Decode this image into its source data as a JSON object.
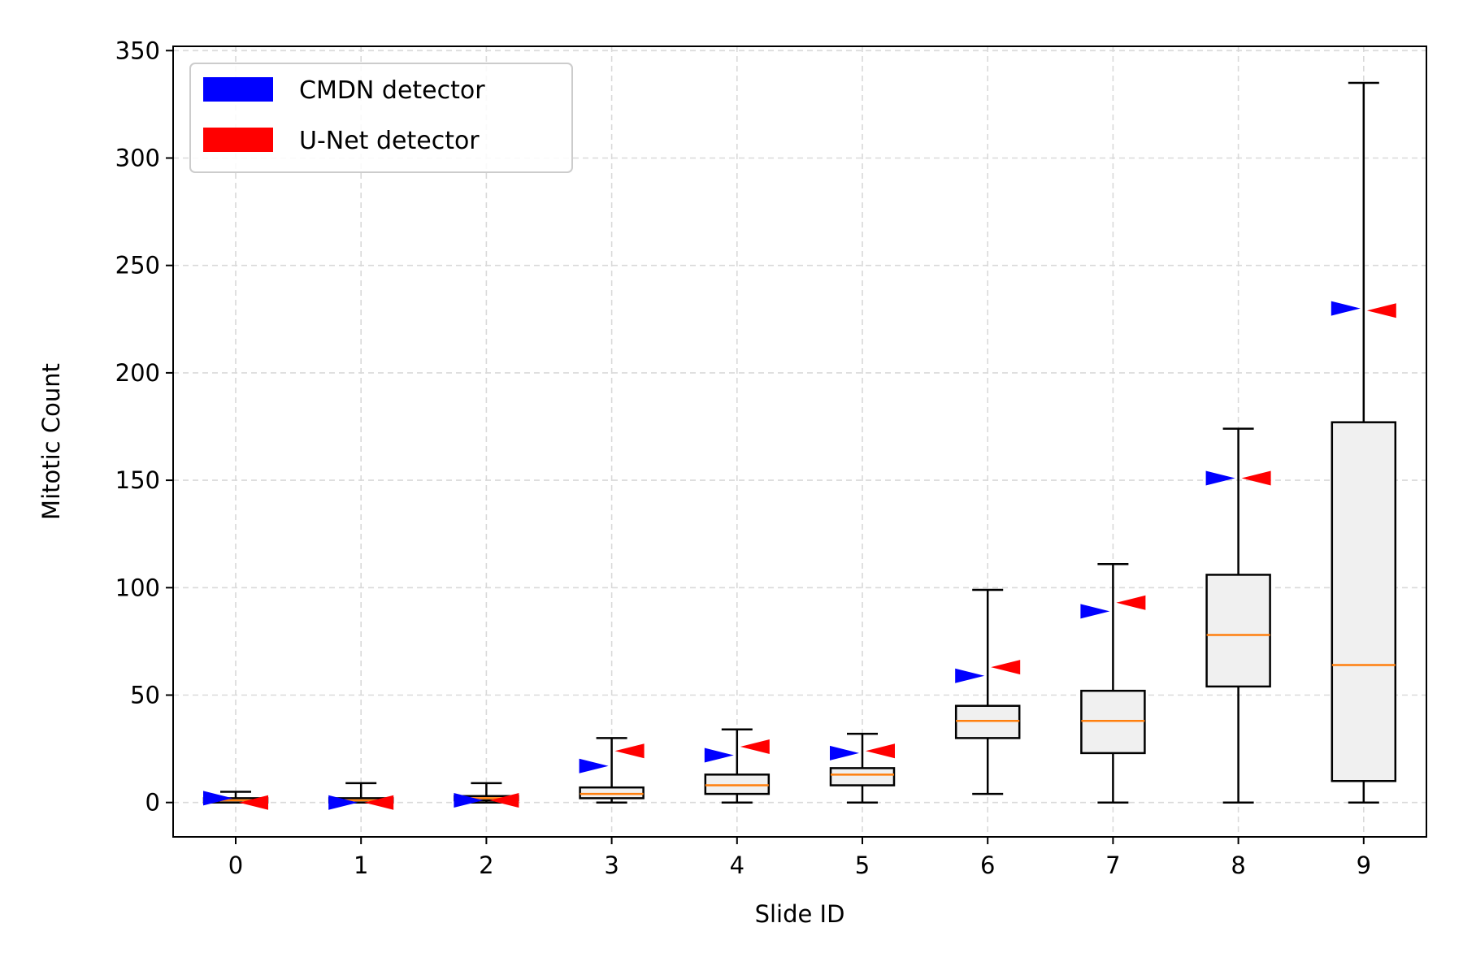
{
  "chart_data": {
    "type": "box",
    "title": "",
    "xlabel": "Slide ID",
    "ylabel": "Mitotic Count",
    "categories": [
      "0",
      "1",
      "2",
      "3",
      "4",
      "5",
      "6",
      "7",
      "8",
      "9"
    ],
    "ylim": [
      -16,
      352
    ],
    "yticks": [
      0,
      50,
      100,
      150,
      200,
      250,
      300,
      350
    ],
    "ytick_labels": [
      "0",
      "50",
      "100",
      "150",
      "200",
      "250",
      "300",
      "350"
    ],
    "grid": true,
    "legend_position": "top-left",
    "box_fill_color": "#f0f0f0",
    "median_color": "#ff7f0e",
    "boxes": [
      {
        "category": "0",
        "whisker_low": 0,
        "q1": 0,
        "median": 1,
        "q3": 2,
        "whisker_high": 5
      },
      {
        "category": "1",
        "whisker_low": 0,
        "q1": 0,
        "median": 1,
        "q3": 2,
        "whisker_high": 9
      },
      {
        "category": "2",
        "whisker_low": 0,
        "q1": 1,
        "median": 2,
        "q3": 3,
        "whisker_high": 9
      },
      {
        "category": "3",
        "whisker_low": 0,
        "q1": 2,
        "median": 4,
        "q3": 7,
        "whisker_high": 30
      },
      {
        "category": "4",
        "whisker_low": 0,
        "q1": 4,
        "median": 8,
        "q3": 13,
        "whisker_high": 34
      },
      {
        "category": "5",
        "whisker_low": 0,
        "q1": 8,
        "median": 13,
        "q3": 16,
        "whisker_high": 32
      },
      {
        "category": "6",
        "whisker_low": 4,
        "q1": 30,
        "median": 38,
        "q3": 45,
        "whisker_high": 99
      },
      {
        "category": "7",
        "whisker_low": 0,
        "q1": 23,
        "median": 38,
        "q3": 52,
        "whisker_high": 111
      },
      {
        "category": "8",
        "whisker_low": 0,
        "q1": 54,
        "median": 78,
        "q3": 106,
        "whisker_high": 174
      },
      {
        "category": "9",
        "whisker_low": 0,
        "q1": 10,
        "median": 64,
        "q3": 177,
        "whisker_high": 335
      }
    ],
    "series": [
      {
        "name": "CMDN detector",
        "color": "#0000ff",
        "marker": "right-pointing triangle",
        "values": [
          2,
          0,
          1,
          17,
          22,
          23,
          59,
          89,
          151,
          230
        ]
      },
      {
        "name": "U-Net detector",
        "color": "#ff0000",
        "marker": "left-pointing triangle",
        "values": [
          0,
          0,
          1,
          24,
          26,
          24,
          63,
          93,
          151,
          229
        ]
      }
    ]
  }
}
